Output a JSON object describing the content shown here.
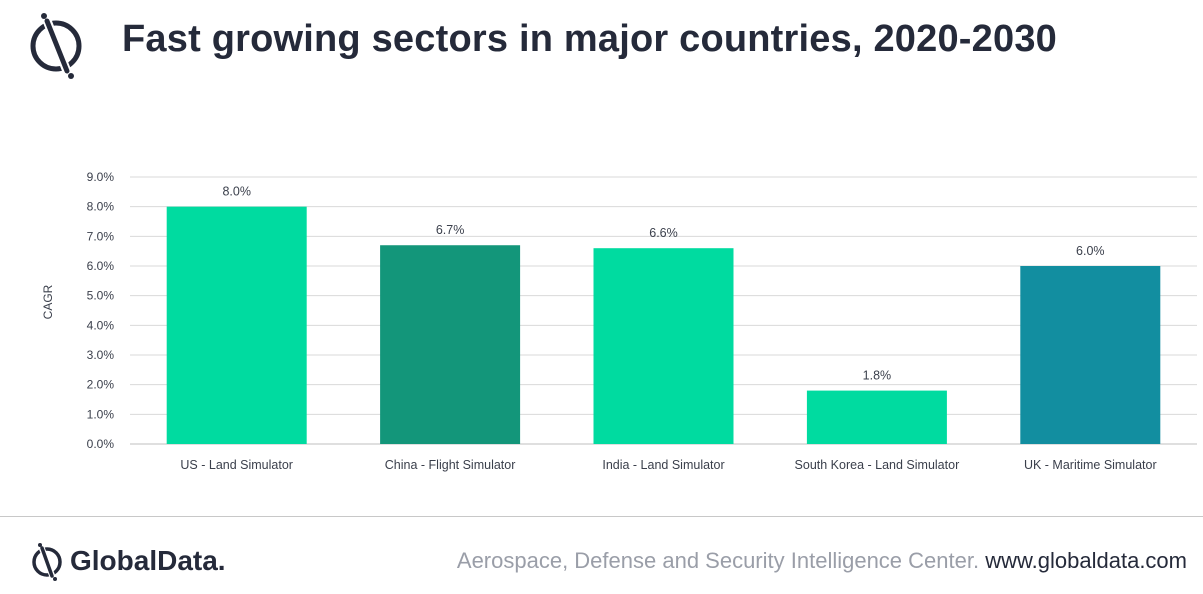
{
  "header": {
    "title": "Fast growing sectors in major countries, 2020-2030",
    "logo_icon": "globaldata-logo-icon"
  },
  "chart_data": {
    "type": "bar",
    "categories": [
      "US - Land Simulator",
      "China - Flight Simulator",
      "India - Land Simulator",
      "South Korea - Land Simulator",
      "UK - Maritime Simulator"
    ],
    "values": [
      8.0,
      6.7,
      6.6,
      1.8,
      6.0
    ],
    "data_labels": [
      "8.0%",
      "6.7%",
      "6.6%",
      "1.8%",
      "6.0%"
    ],
    "bar_colors": [
      "#00dba0",
      "#13967a",
      "#00dba0",
      "#00dba0",
      "#128ea0"
    ],
    "ylabel": "CAGR",
    "ylim": [
      0,
      9
    ],
    "yticks": [
      "0.0%",
      "1.0%",
      "2.0%",
      "3.0%",
      "4.0%",
      "5.0%",
      "6.0%",
      "7.0%",
      "8.0%",
      "9.0%"
    ],
    "grid": true,
    "legend": "none"
  },
  "footer": {
    "brand": "GlobalData.",
    "center": "Aerospace, Defense and Security Intelligence Center.",
    "url": "www.globaldata.com"
  },
  "colors": {
    "text_dark": "#252a3a",
    "grid": "#d9d9d9",
    "footer_gray": "#9a9ea8"
  }
}
